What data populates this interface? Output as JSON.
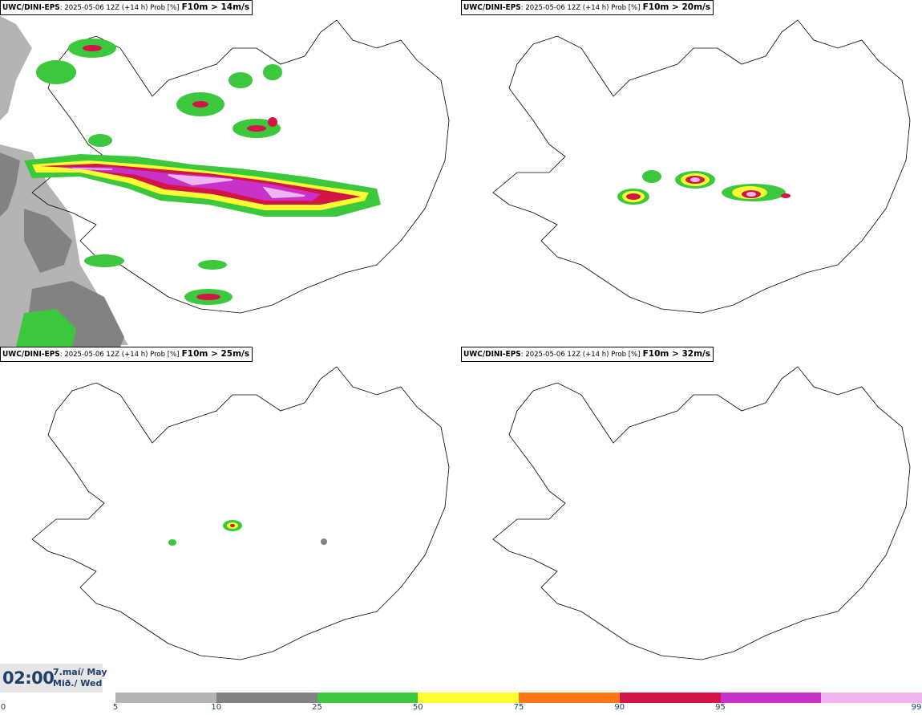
{
  "panels": [
    {
      "model": "UWC/DINI-EPS",
      "meta": ": 2025-05-06 12Z (+14 h) Prob [%]",
      "threshold": "F10m > 14m/s"
    },
    {
      "model": "UWC/DINI-EPS",
      "meta": ": 2025-05-06 12Z (+14 h) Prob [%]",
      "threshold": "F10m > 20m/s"
    },
    {
      "model": "UWC/DINI-EPS",
      "meta": ": 2025-05-06 12Z (+14 h) Prob [%]",
      "threshold": "F10m > 25m/s"
    },
    {
      "model": "UWC/DINI-EPS",
      "meta": ": 2025-05-06 12Z (+14 h) Prob [%]",
      "threshold": "F10m > 32m/s"
    }
  ],
  "time": {
    "clock": "02:00",
    "date_line1": "7.maí/ May",
    "date_line2": "Mið./ Wed"
  },
  "legend": {
    "ticks": [
      "0",
      "5",
      "10",
      "25",
      "50",
      "75",
      "90",
      "95",
      "99"
    ],
    "colors": [
      "#b4b4b4",
      "#828282",
      "#3cc83c",
      "#ffff32",
      "#ff7814",
      "#d21446",
      "#c832c8",
      "#f0b4f0"
    ]
  }
}
